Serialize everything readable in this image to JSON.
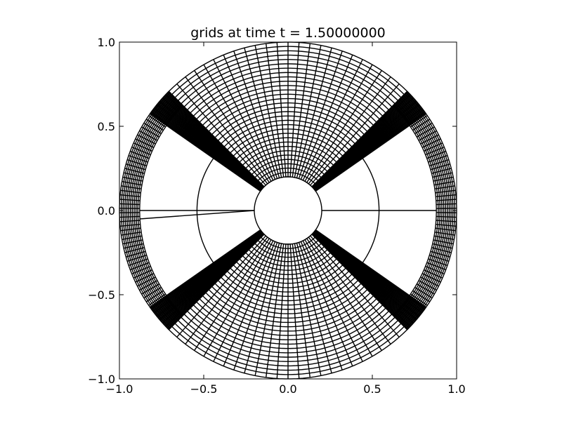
{
  "chart_data": {
    "type": "line",
    "title": "grids at time t =      1.50000000",
    "xlabel": "",
    "ylabel": "",
    "xlim": [
      -1.0,
      1.0
    ],
    "ylim": [
      -1.0,
      1.0
    ],
    "xticks": [
      -1.0,
      -0.5,
      0.0,
      0.5,
      1.0
    ],
    "yticks": [
      1.0,
      0.5,
      0.0,
      -0.5,
      -1.0
    ],
    "xtick_labels": [
      "−1.0",
      "−0.5",
      "0.0",
      "0.5",
      "1.0"
    ],
    "ytick_labels": [
      "1.0",
      "0.5",
      "0.0",
      "−0.5",
      "−1.0"
    ],
    "aspect": "equal",
    "grid": false,
    "line_color": "#000000",
    "series": [
      {
        "kind": "annular-sector-grid",
        "r_inner": 0.2,
        "r_outer": 1.0,
        "theta_deg": [
          45,
          135
        ],
        "radial_lines": 25,
        "circumferential_lines": 32
      },
      {
        "kind": "annular-sector-grid",
        "r_inner": 0.2,
        "r_outer": 1.0,
        "theta_deg": [
          225,
          315
        ],
        "radial_lines": 25,
        "circumferential_lines": 32
      },
      {
        "kind": "annular-sector-grid",
        "r_inner": 0.2,
        "r_outer": 1.0,
        "theta_deg": [
          35,
          45
        ],
        "radial_lines": 32,
        "circumferential_lines": 8
      },
      {
        "kind": "annular-sector-grid",
        "r_inner": 0.2,
        "r_outer": 1.0,
        "theta_deg": [
          135,
          145
        ],
        "radial_lines": 32,
        "circumferential_lines": 8
      },
      {
        "kind": "annular-sector-grid",
        "r_inner": 0.2,
        "r_outer": 1.0,
        "theta_deg": [
          215,
          225
        ],
        "radial_lines": 32,
        "circumferential_lines": 8
      },
      {
        "kind": "annular-sector-grid",
        "r_inner": 0.2,
        "r_outer": 1.0,
        "theta_deg": [
          315,
          325
        ],
        "radial_lines": 32,
        "circumferential_lines": 8
      },
      {
        "kind": "annular-sector-grid",
        "r_inner": 0.88,
        "r_outer": 1.0,
        "theta_deg": [
          -45,
          45
        ],
        "radial_lines": 60,
        "circumferential_lines": 12
      },
      {
        "kind": "annular-sector-grid",
        "r_inner": 0.88,
        "r_outer": 1.0,
        "theta_deg": [
          135,
          225
        ],
        "radial_lines": 60,
        "circumferential_lines": 12
      },
      {
        "kind": "circle-arc",
        "r": 0.54,
        "theta_deg": [
          -40,
          40
        ]
      },
      {
        "kind": "circle-arc",
        "r": 0.54,
        "theta_deg": [
          140,
          220
        ]
      },
      {
        "kind": "circle",
        "r": 0.2
      },
      {
        "kind": "segment",
        "points": [
          [
            0.2,
            0.0
          ],
          [
            0.88,
            0.0
          ]
        ]
      },
      {
        "kind": "segment",
        "points": [
          [
            -0.2,
            0.0
          ],
          [
            -0.88,
            0.0
          ]
        ]
      },
      {
        "kind": "segment",
        "points": [
          [
            -0.2,
            0.0
          ],
          [
            -0.88,
            -0.05
          ]
        ]
      }
    ]
  }
}
